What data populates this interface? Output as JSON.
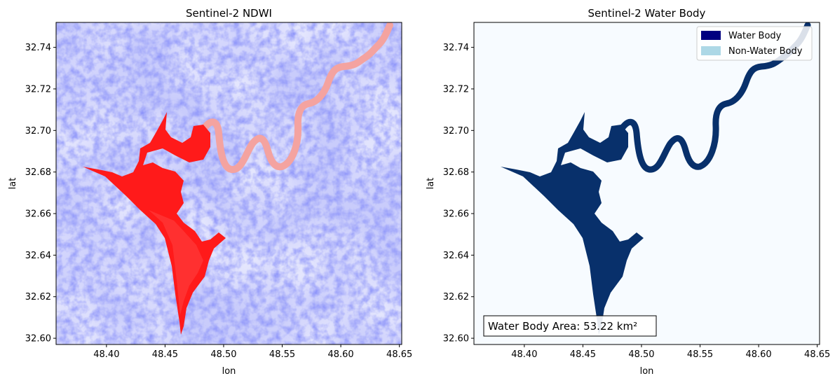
{
  "chart_data": [
    {
      "type": "heatmap",
      "title": "Sentinel-2 NDWI",
      "xlabel": "lon",
      "ylabel": "lat",
      "xlim": [
        48.357,
        48.652
      ],
      "ylim": [
        32.597,
        32.752
      ],
      "xticks": [
        "48.40",
        "48.45",
        "48.50",
        "48.55",
        "48.60",
        "48.65"
      ],
      "yticks": [
        "32.60",
        "32.62",
        "32.64",
        "32.66",
        "32.68",
        "32.70",
        "32.72",
        "32.74"
      ],
      "colormap": "bwr_r",
      "colors": {
        "low": "#7f86f4",
        "background": "#c9ccfb",
        "high": "#ff1a1a",
        "river": "#f4a3a0"
      }
    },
    {
      "type": "heatmap",
      "title": "Sentinel-2 Water Body",
      "xlabel": "lon",
      "ylabel": "lat",
      "xlim": [
        48.357,
        48.652
      ],
      "ylim": [
        32.597,
        32.752
      ],
      "xticks": [
        "48.40",
        "48.45",
        "48.50",
        "48.55",
        "48.60",
        "48.65"
      ],
      "yticks": [
        "32.60",
        "32.62",
        "32.64",
        "32.66",
        "32.68",
        "32.70",
        "32.72",
        "32.74"
      ],
      "legend": {
        "placement": "top-right",
        "entries": [
          {
            "label": "Water Body",
            "color": "#000080"
          },
          {
            "label": "Non-Water Body",
            "color": "#add8e6"
          }
        ]
      },
      "annotation": "Water Body Area: 53.22 km²",
      "colors": {
        "water": "#08306b",
        "background": "#f7fbff"
      }
    }
  ]
}
